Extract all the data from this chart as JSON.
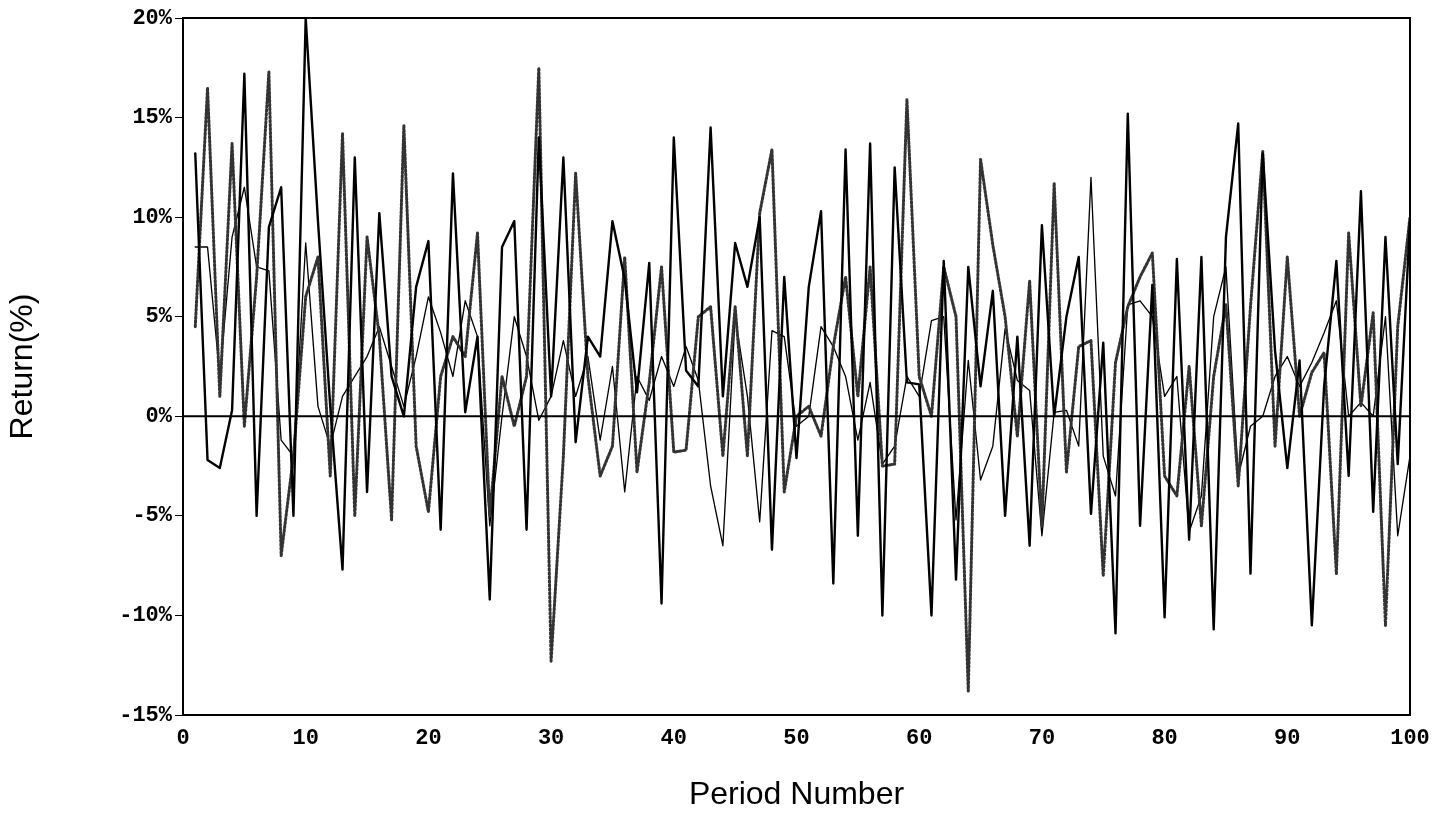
{
  "chart_data": {
    "type": "line",
    "xlabel": "Period Number",
    "ylabel": "Return(%)",
    "x": [
      1,
      2,
      3,
      4,
      5,
      6,
      7,
      8,
      9,
      10,
      11,
      12,
      13,
      14,
      15,
      16,
      17,
      18,
      19,
      20,
      21,
      22,
      23,
      24,
      25,
      26,
      27,
      28,
      29,
      30,
      31,
      32,
      33,
      34,
      35,
      36,
      37,
      38,
      39,
      40,
      41,
      42,
      43,
      44,
      45,
      46,
      47,
      48,
      49,
      50,
      51,
      52,
      53,
      54,
      55,
      56,
      57,
      58,
      59,
      60,
      61,
      62,
      63,
      64,
      65,
      66,
      67,
      68,
      69,
      70,
      71,
      72,
      73,
      74,
      75,
      76,
      77,
      78,
      79,
      80,
      81,
      82,
      83,
      84,
      85,
      86,
      87,
      88,
      89,
      90,
      91,
      92,
      93,
      94,
      95,
      96,
      97,
      98,
      99,
      100
    ],
    "series": [
      {
        "color": "#000000",
        "line_style": "solid",
        "values": [
          13.2,
          -2.2,
          -2.6,
          0.3,
          17.2,
          -5,
          9.5,
          11.5,
          -5,
          20,
          9.8,
          0.5,
          -7.7,
          13,
          -3.8,
          10.2,
          2,
          0,
          6.5,
          8.8,
          -5.7,
          12.2,
          0.2,
          4,
          -9.2,
          8.5,
          9.8,
          -5.7,
          14,
          1,
          13,
          -1.3,
          4,
          3,
          9.8,
          6.9,
          1.2,
          7.7,
          -9.4,
          14,
          2.3,
          1.5,
          14.5,
          1,
          8.7,
          6.5,
          10,
          -6.7,
          7,
          -2.1,
          6.5,
          10.3,
          -8.4,
          13.4,
          -6,
          13.7,
          -10,
          12.5,
          1.7,
          1.6,
          -10,
          7.8,
          -8.2,
          7.5,
          1.5,
          6.3,
          -5,
          4,
          -6.5,
          9.6,
          0,
          5,
          8,
          -4.9,
          3.7,
          -10.9,
          15.2,
          -5.5,
          6.6,
          -10.1,
          7.9,
          -6.2,
          8,
          -10.7,
          9,
          14.7,
          -7.9,
          13.2,
          3.3,
          -2.6,
          2.8,
          -10.5,
          1.5,
          7.8,
          -3,
          11.3,
          -4.8,
          9,
          -2.4,
          9.8
        ]
      },
      {
        "color": "#333333",
        "line_style": "dotted",
        "values": [
          4.5,
          16.5,
          1,
          13.7,
          -0.5,
          7,
          17.3,
          -7,
          -2,
          6,
          8,
          -3,
          14.2,
          -5,
          9,
          4,
          -5.2,
          14.6,
          -1.5,
          -4.8,
          2,
          4,
          3,
          9.2,
          -5,
          2,
          -0.5,
          2,
          17.5,
          -12.3,
          -2,
          12.2,
          2,
          -3,
          -1.5,
          8,
          -2.8,
          1.7,
          7.5,
          -1.8,
          -1.7,
          5,
          5.5,
          -2,
          5.5,
          -2,
          10.2,
          13.4,
          -3.8,
          0,
          0.5,
          -1,
          3.5,
          7,
          1,
          7.5,
          -2.5,
          -2.4,
          15.9,
          2,
          0,
          7.5,
          5,
          -13.8,
          12.9,
          8.6,
          5,
          -1,
          6.8,
          -5.5,
          11.7,
          -2.8,
          3.5,
          3.8,
          -8,
          2.7,
          5.5,
          7,
          8.2,
          -3,
          -4,
          2.5,
          -5.5,
          2,
          5.6,
          -3.5,
          5.5,
          13.3,
          -1.5,
          8,
          0,
          2.2,
          3.2,
          -7.9,
          9.2,
          0.5,
          5.2,
          -10.5,
          4.5,
          10
        ]
      },
      {
        "color": "#000000",
        "line_style": "solid",
        "values": [
          8.5,
          8.5,
          2,
          9,
          11.5,
          7.5,
          7.3,
          -1.2,
          -2,
          8.7,
          0.5,
          -1.5,
          1,
          2,
          3,
          4.5,
          2.5,
          0.5,
          3,
          6,
          4.2,
          2,
          5.8,
          4,
          -5.5,
          0,
          5,
          3,
          -0.2,
          1,
          3.8,
          1,
          3,
          -1.2,
          2.5,
          -3.8,
          2,
          0.8,
          3,
          1.5,
          3.5,
          1.8,
          -3.5,
          -6.5,
          5,
          1,
          -5.3,
          4.3,
          4,
          -0.5,
          0,
          4.5,
          3.5,
          2,
          -1.2,
          1.7,
          -2.4,
          -1.5,
          2,
          1,
          4.8,
          5,
          -5.2,
          2.8,
          -3.2,
          -1.5,
          4.4,
          1.8,
          1.3,
          -6,
          0.2,
          0.3,
          -1.5,
          12,
          -2,
          -4,
          5.6,
          5.8,
          5,
          1,
          2,
          -5.8,
          -4,
          5,
          7.5,
          -3,
          -0.5,
          0,
          2,
          3,
          1.5,
          2.7,
          4.2,
          5.8,
          0,
          0.7,
          0,
          5,
          -6,
          -2
        ]
      }
    ],
    "xlim": [
      0,
      100
    ],
    "xticks": [
      0,
      10,
      20,
      30,
      40,
      50,
      60,
      70,
      80,
      90,
      100
    ],
    "ylim": [
      -15,
      20
    ],
    "yticks": [
      {
        "value": -15,
        "label": "-15%"
      },
      {
        "value": -10,
        "label": "-10%"
      },
      {
        "value": -5,
        "label": "-5%"
      },
      {
        "value": 0,
        "label": "0%"
      },
      {
        "value": 5,
        "label": "5%"
      },
      {
        "value": 10,
        "label": "10%"
      },
      {
        "value": 15,
        "label": "15%"
      },
      {
        "value": 20,
        "label": "20%"
      }
    ],
    "ref_lines": [
      {
        "axis": "y",
        "value": 0,
        "color": "#000000"
      }
    ],
    "grid": false,
    "legend": false,
    "marker": "none"
  }
}
